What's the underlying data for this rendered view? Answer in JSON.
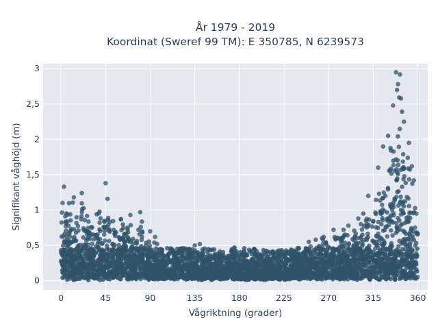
{
  "chart_data": {
    "type": "scatter",
    "title_line1": "År 1979 - 2019",
    "title_line2": "Koordinat (Sweref 99 TM): E 350785, N 6239573",
    "xlabel": "Vågriktning (grader)",
    "ylabel": "Signifikant våghöjd (m)",
    "xlim": [
      -18,
      370
    ],
    "ylim": [
      -0.13,
      3.07
    ],
    "x_ticks": [
      0,
      45,
      90,
      135,
      180,
      225,
      270,
      315,
      360
    ],
    "x_tick_labels": [
      "0",
      "45",
      "90",
      "135",
      "180",
      "225",
      "270",
      "315",
      "360"
    ],
    "y_ticks": [
      0,
      0.5,
      1,
      1.5,
      2,
      2.5,
      3
    ],
    "y_tick_labels": [
      "0",
      "0,5",
      "1",
      "1,5",
      "2",
      "2,5",
      "3"
    ],
    "grid": true,
    "marker_color": "#2f5369",
    "plot_background": "#e5e8f0",
    "series": [
      {
        "envelope_points": [
          {
            "x": 0,
            "y": 1.35
          },
          {
            "x": 2,
            "y": 1.3
          },
          {
            "x": 8,
            "y": 1.2
          },
          {
            "x": 15,
            "y": 1.22
          },
          {
            "x": 22,
            "y": 1.2
          },
          {
            "x": 30,
            "y": 1.05
          },
          {
            "x": 38,
            "y": 1.02
          },
          {
            "x": 45,
            "y": 1.38
          },
          {
            "x": 50,
            "y": 1.0
          },
          {
            "x": 60,
            "y": 0.98
          },
          {
            "x": 70,
            "y": 0.92
          },
          {
            "x": 80,
            "y": 0.95
          },
          {
            "x": 85,
            "y": 0.8
          },
          {
            "x": 90,
            "y": 0.65
          },
          {
            "x": 95,
            "y": 0.58
          },
          {
            "x": 100,
            "y": 0.55
          },
          {
            "x": 110,
            "y": 0.5
          },
          {
            "x": 120,
            "y": 0.48
          },
          {
            "x": 135,
            "y": 0.5
          },
          {
            "x": 140,
            "y": 0.52
          },
          {
            "x": 150,
            "y": 0.45
          },
          {
            "x": 165,
            "y": 0.42
          },
          {
            "x": 175,
            "y": 0.48
          },
          {
            "x": 180,
            "y": 0.44
          },
          {
            "x": 190,
            "y": 0.47
          },
          {
            "x": 200,
            "y": 0.42
          },
          {
            "x": 210,
            "y": 0.43
          },
          {
            "x": 225,
            "y": 0.45
          },
          {
            "x": 240,
            "y": 0.5
          },
          {
            "x": 250,
            "y": 0.55
          },
          {
            "x": 260,
            "y": 0.62
          },
          {
            "x": 270,
            "y": 0.65
          },
          {
            "x": 280,
            "y": 0.75
          },
          {
            "x": 290,
            "y": 0.82
          },
          {
            "x": 300,
            "y": 0.9
          },
          {
            "x": 310,
            "y": 1.1
          },
          {
            "x": 318,
            "y": 1.3
          },
          {
            "x": 325,
            "y": 1.6
          },
          {
            "x": 330,
            "y": 1.95
          },
          {
            "x": 335,
            "y": 2.3
          },
          {
            "x": 338,
            "y": 2.6
          },
          {
            "x": 340,
            "y": 2.95
          },
          {
            "x": 342,
            "y": 2.9
          },
          {
            "x": 345,
            "y": 2.6
          },
          {
            "x": 348,
            "y": 2.1
          },
          {
            "x": 352,
            "y": 1.75
          },
          {
            "x": 355,
            "y": 1.5
          },
          {
            "x": 358,
            "y": 1.35
          },
          {
            "x": 360,
            "y": 1.1
          }
        ],
        "outlier_points": [
          {
            "x": 45,
            "y": 1.38
          },
          {
            "x": 3,
            "y": 1.33
          },
          {
            "x": 47,
            "y": 1.16
          },
          {
            "x": 21,
            "y": 1.24
          },
          {
            "x": 13,
            "y": 1.18
          },
          {
            "x": 338,
            "y": 2.95
          },
          {
            "x": 342,
            "y": 2.92
          },
          {
            "x": 340,
            "y": 2.78
          },
          {
            "x": 339,
            "y": 2.7
          },
          {
            "x": 343,
            "y": 2.58
          },
          {
            "x": 335,
            "y": 2.48
          },
          {
            "x": 346,
            "y": 2.25
          },
          {
            "x": 325,
            "y": 1.9
          },
          {
            "x": 330,
            "y": 2.05
          },
          {
            "x": 351,
            "y": 1.95
          },
          {
            "x": 354,
            "y": 1.62
          },
          {
            "x": 356,
            "y": 1.42
          },
          {
            "x": 320,
            "y": 1.6
          },
          {
            "x": 310,
            "y": 1.2
          },
          {
            "x": 305,
            "y": 0.95
          },
          {
            "x": 300,
            "y": 0.88
          },
          {
            "x": 290,
            "y": 0.78
          },
          {
            "x": 285,
            "y": 0.72
          },
          {
            "x": 275,
            "y": 0.72
          },
          {
            "x": 265,
            "y": 0.62
          },
          {
            "x": 257,
            "y": 0.58
          },
          {
            "x": 250,
            "y": 0.55
          },
          {
            "x": 140,
            "y": 0.52
          },
          {
            "x": 135,
            "y": 0.5
          },
          {
            "x": 175,
            "y": 0.47
          },
          {
            "x": 185,
            "y": 0.46
          },
          {
            "x": 90,
            "y": 0.7
          },
          {
            "x": 95,
            "y": 0.62
          },
          {
            "x": 80,
            "y": 0.97
          },
          {
            "x": 70,
            "y": 0.93
          }
        ]
      }
    ]
  }
}
